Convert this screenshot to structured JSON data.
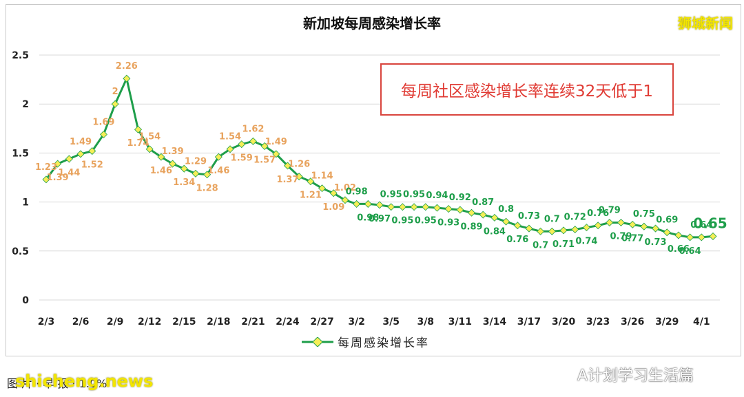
{
  "brand": "狮城新闻",
  "callout": "每周社区感染增长率连续32天低于1",
  "source_note": "图 片 · 早 报 · 1.0%",
  "watermark_site": "shicheng.news",
  "watermark_account": "A计划学习生活篇",
  "colors": {
    "line": "#1e9e4a",
    "marker_fill": "#f6ee57",
    "label_orange": "#e8a35e",
    "label_green": "#1e9e4a",
    "callout_border": "#d9443d",
    "callout_text": "#e03a33"
  },
  "chart_data": {
    "type": "line",
    "title": "新加坡每周感染增长率",
    "xlabel": "",
    "ylabel": "",
    "ylim": [
      0,
      2.5
    ],
    "yticks": [
      "0",
      "0.5",
      "1",
      "1.5",
      "2",
      "2.5"
    ],
    "xticks": [
      "2/3",
      "2/6",
      "2/9",
      "2/12",
      "2/15",
      "2/18",
      "2/21",
      "2/24",
      "2/27",
      "3/2",
      "3/5",
      "3/8",
      "3/11",
      "3/14",
      "3/17",
      "3/20",
      "3/23",
      "3/26",
      "3/29",
      "4/1"
    ],
    "grid": "horizontal",
    "legend": "bottom",
    "series": [
      {
        "name": "每周感染增长率",
        "x": [
          "2/3",
          "2/4",
          "2/5",
          "2/6",
          "2/7",
          "2/8",
          "2/9",
          "2/10",
          "2/11",
          "2/12",
          "2/13",
          "2/14",
          "2/15",
          "2/16",
          "2/17",
          "2/18",
          "2/19",
          "2/20",
          "2/21",
          "2/22",
          "2/23",
          "2/24",
          "2/25",
          "2/26",
          "2/27",
          "2/28",
          "3/1",
          "3/2",
          "3/3",
          "3/4",
          "3/5",
          "3/6",
          "3/7",
          "3/8",
          "3/9",
          "3/10",
          "3/11",
          "3/12",
          "3/13",
          "3/14",
          "3/15",
          "3/16",
          "3/17",
          "3/18",
          "3/19",
          "3/20",
          "3/21",
          "3/22",
          "3/23",
          "3/24",
          "3/25",
          "3/26",
          "3/27",
          "3/28",
          "3/29",
          "3/30",
          "3/31",
          "4/1",
          "4/2"
        ],
        "values": [
          1.23,
          1.39,
          1.44,
          1.49,
          1.52,
          1.69,
          2.0,
          2.26,
          1.74,
          1.54,
          1.46,
          1.39,
          1.34,
          1.29,
          1.28,
          1.46,
          1.54,
          1.59,
          1.62,
          1.57,
          1.49,
          1.37,
          1.26,
          1.21,
          1.14,
          1.09,
          1.02,
          0.98,
          0.98,
          0.97,
          0.95,
          0.95,
          0.95,
          0.95,
          0.94,
          0.93,
          0.92,
          0.89,
          0.87,
          0.84,
          0.8,
          0.76,
          0.73,
          0.7,
          0.7,
          0.71,
          0.72,
          0.74,
          0.76,
          0.79,
          0.79,
          0.77,
          0.75,
          0.73,
          0.69,
          0.66,
          0.64,
          0.64,
          0.65
        ],
        "label_side": [
          -1,
          1,
          1,
          -1,
          1,
          -1,
          -1,
          -1,
          1,
          -1,
          1,
          -1,
          1,
          -1,
          1,
          1,
          -1,
          1,
          -1,
          1,
          -1,
          1,
          -1,
          1,
          -1,
          1,
          -1,
          -1,
          1,
          1,
          -1,
          1,
          -1,
          1,
          -1,
          1,
          -1,
          1,
          -1,
          1,
          -1,
          1,
          -1,
          1,
          -1,
          1,
          -1,
          1,
          -1,
          -1,
          1,
          1,
          -1,
          1,
          -1,
          1,
          1,
          -1,
          -1
        ],
        "highlight_last": true
      }
    ]
  }
}
